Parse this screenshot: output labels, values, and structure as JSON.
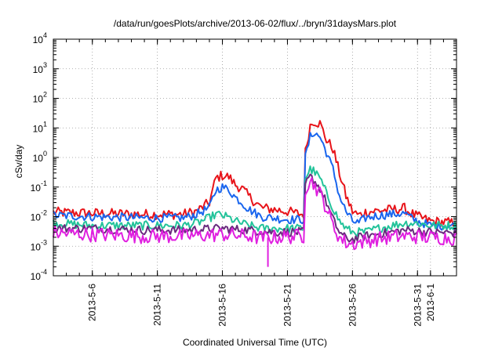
{
  "chart_data": {
    "type": "line",
    "title": "/data/run/goesPlots/archive/2013-06-02/flux/../bryn/31daysMars.plot",
    "xlabel": "Coordinated Universal Time (UTC)",
    "ylabel": "cSv/day",
    "x_range": [
      "2013-05-03",
      "2013-06-03"
    ],
    "y_scale": "log",
    "ylim": [
      0.0001,
      10000
    ],
    "grid": true,
    "x_ticks": [
      "2013-5-6",
      "2013-5-11",
      "2013-5-16",
      "2013-5-21",
      "2013-5-26",
      "2013-5-31",
      "2013-6-1"
    ],
    "x_tick_dates": [
      "2013-05-06",
      "2013-05-11",
      "2013-05-16",
      "2013-05-21",
      "2013-05-26",
      "2013-05-31",
      "2013-06-01"
    ],
    "y_ticks": [
      {
        "base": "10",
        "exp": "-4",
        "value": 0.0001
      },
      {
        "base": "10",
        "exp": "-3",
        "value": 0.001
      },
      {
        "base": "10",
        "exp": "-2",
        "value": 0.01
      },
      {
        "base": "10",
        "exp": "-1",
        "value": 0.1
      },
      {
        "base": "10",
        "exp": "0",
        "value": 1
      },
      {
        "base": "10",
        "exp": "1",
        "value": 10
      },
      {
        "base": "10",
        "exp": "2",
        "value": 100
      },
      {
        "base": "10",
        "exp": "3",
        "value": 1000
      },
      {
        "base": "10",
        "exp": "4",
        "value": 10000
      }
    ],
    "series": [
      {
        "color": "#e8141a",
        "width": 2,
        "noise": 0.35,
        "points": [
          [
            "2013-05-03",
            0.014
          ],
          [
            "2013-05-06",
            0.013
          ],
          [
            "2013-05-10",
            0.012
          ],
          [
            "2013-05-13",
            0.012
          ],
          [
            "2013-05-14",
            0.015
          ],
          [
            "2013-05-15",
            0.03
          ],
          [
            "2013-05-15T12:00",
            0.2
          ],
          [
            "2013-05-16",
            0.25
          ],
          [
            "2013-05-16T12:00",
            0.22
          ],
          [
            "2013-05-17",
            0.12
          ],
          [
            "2013-05-17T12:00",
            0.09
          ],
          [
            "2013-05-18",
            0.05
          ],
          [
            "2013-05-19",
            0.02
          ],
          [
            "2013-05-21",
            0.015
          ],
          [
            "2013-05-22",
            0.012
          ],
          [
            "2013-05-22T06:00",
            0.012
          ],
          [
            "2013-05-22T09:00",
            1.5
          ],
          [
            "2013-05-22T18:00",
            12
          ],
          [
            "2013-05-23",
            17
          ],
          [
            "2013-05-23T12:00",
            14
          ],
          [
            "2013-05-24",
            4
          ],
          [
            "2013-05-24T12:00",
            2
          ],
          [
            "2013-05-25",
            0.3
          ],
          [
            "2013-05-25T12:00",
            0.05
          ],
          [
            "2013-05-26",
            0.015
          ],
          [
            "2013-05-26T12:00",
            0.011
          ],
          [
            "2013-05-27",
            0.014
          ],
          [
            "2013-05-28",
            0.016
          ],
          [
            "2013-05-29",
            0.017
          ],
          [
            "2013-05-30",
            0.019
          ],
          [
            "2013-05-30T12:00",
            0.013
          ],
          [
            "2013-05-31",
            0.01
          ],
          [
            "2013-06-01",
            0.007
          ],
          [
            "2013-06-03",
            0.006
          ]
        ]
      },
      {
        "color": "#1a66ee",
        "width": 2,
        "noise": 0.3,
        "points": [
          [
            "2013-05-03",
            0.011
          ],
          [
            "2013-05-06",
            0.01
          ],
          [
            "2013-05-10",
            0.009
          ],
          [
            "2013-05-13",
            0.009
          ],
          [
            "2013-05-14",
            0.012
          ],
          [
            "2013-05-15",
            0.02
          ],
          [
            "2013-05-15T12:00",
            0.08
          ],
          [
            "2013-05-16",
            0.1
          ],
          [
            "2013-05-16T12:00",
            0.08
          ],
          [
            "2013-05-17",
            0.045
          ],
          [
            "2013-05-17T12:00",
            0.03
          ],
          [
            "2013-05-18",
            0.018
          ],
          [
            "2013-05-19",
            0.01
          ],
          [
            "2013-05-21",
            0.008
          ],
          [
            "2013-05-22",
            0.008
          ],
          [
            "2013-05-22T06:00",
            0.008
          ],
          [
            "2013-05-22T09:00",
            1.0
          ],
          [
            "2013-05-22T18:00",
            5
          ],
          [
            "2013-05-23",
            7
          ],
          [
            "2013-05-23T12:00",
            5
          ],
          [
            "2013-05-24",
            1.5
          ],
          [
            "2013-05-24T12:00",
            0.4
          ],
          [
            "2013-05-25",
            0.05
          ],
          [
            "2013-05-25T12:00",
            0.015
          ],
          [
            "2013-05-26",
            0.007
          ],
          [
            "2013-05-26T12:00",
            0.006
          ],
          [
            "2013-05-27",
            0.009
          ],
          [
            "2013-05-28",
            0.011
          ],
          [
            "2013-05-29",
            0.012
          ],
          [
            "2013-05-30",
            0.013
          ],
          [
            "2013-05-30T12:00",
            0.009
          ],
          [
            "2013-05-31",
            0.007
          ],
          [
            "2013-06-01",
            0.005
          ],
          [
            "2013-06-03",
            0.005
          ]
        ]
      },
      {
        "color": "#22c39a",
        "width": 2,
        "noise": 0.3,
        "points": [
          [
            "2013-05-03",
            0.006
          ],
          [
            "2013-05-06",
            0.005
          ],
          [
            "2013-05-10",
            0.005
          ],
          [
            "2013-05-13",
            0.005
          ],
          [
            "2013-05-14",
            0.006
          ],
          [
            "2013-05-15",
            0.009
          ],
          [
            "2013-05-15T12:00",
            0.012
          ],
          [
            "2013-05-16",
            0.011
          ],
          [
            "2013-05-16T12:00",
            0.009
          ],
          [
            "2013-05-17",
            0.007
          ],
          [
            "2013-05-18",
            0.005
          ],
          [
            "2013-05-19",
            0.004
          ],
          [
            "2013-05-21",
            0.004
          ],
          [
            "2013-05-22",
            0.004
          ],
          [
            "2013-05-22T06:00",
            0.004
          ],
          [
            "2013-05-22T09:00",
            0.2
          ],
          [
            "2013-05-22T18:00",
            0.4
          ],
          [
            "2013-05-23",
            0.35
          ],
          [
            "2013-05-23T12:00",
            0.2
          ],
          [
            "2013-05-24",
            0.06
          ],
          [
            "2013-05-24T12:00",
            0.02
          ],
          [
            "2013-05-25",
            0.007
          ],
          [
            "2013-05-25T12:00",
            0.004
          ],
          [
            "2013-05-26",
            0.003
          ],
          [
            "2013-05-27",
            0.003
          ],
          [
            "2013-05-28",
            0.004
          ],
          [
            "2013-05-29",
            0.005
          ],
          [
            "2013-05-30",
            0.006
          ],
          [
            "2013-05-31",
            0.006
          ],
          [
            "2013-06-01",
            0.005
          ],
          [
            "2013-06-03",
            0.005
          ]
        ]
      },
      {
        "color": "#6a2a7e",
        "width": 2,
        "noise": 0.3,
        "points": [
          [
            "2013-05-03",
            0.004
          ],
          [
            "2013-05-06",
            0.004
          ],
          [
            "2013-05-10",
            0.0035
          ],
          [
            "2013-05-13",
            0.0035
          ],
          [
            "2013-05-16",
            0.004
          ],
          [
            "2013-05-18",
            0.0035
          ],
          [
            "2013-05-20",
            0.003
          ],
          [
            "2013-05-22",
            0.003
          ],
          [
            "2013-05-22T06:00",
            0.003
          ],
          [
            "2013-05-22T09:00",
            0.12
          ],
          [
            "2013-05-22T18:00",
            0.22
          ],
          [
            "2013-05-23",
            0.18
          ],
          [
            "2013-05-23T12:00",
            0.09
          ],
          [
            "2013-05-24",
            0.03
          ],
          [
            "2013-05-24T12:00",
            0.008
          ],
          [
            "2013-05-25",
            0.003
          ],
          [
            "2013-05-25T12:00",
            0.0018
          ],
          [
            "2013-05-26",
            0.0017
          ],
          [
            "2013-05-27",
            0.0022
          ],
          [
            "2013-05-28",
            0.0026
          ],
          [
            "2013-05-29",
            0.003
          ],
          [
            "2013-05-30",
            0.0035
          ],
          [
            "2013-05-31",
            0.0033
          ],
          [
            "2013-06-01",
            0.003
          ],
          [
            "2013-06-03",
            0.0028
          ]
        ]
      },
      {
        "color": "#e020e0",
        "width": 2,
        "noise": 0.5,
        "points": [
          [
            "2013-05-03",
            0.0028
          ],
          [
            "2013-05-06",
            0.0025
          ],
          [
            "2013-05-10",
            0.0022
          ],
          [
            "2013-05-13",
            0.0022
          ],
          [
            "2013-05-16",
            0.0025
          ],
          [
            "2013-05-18",
            0.0022
          ],
          [
            "2013-05-19",
            0.0019
          ],
          [
            "2013-05-20",
            0.002
          ],
          [
            "2013-05-22",
            0.0022
          ],
          [
            "2013-05-22T06:00",
            0.0022
          ],
          [
            "2013-05-22T09:00",
            0.09
          ],
          [
            "2013-05-22T18:00",
            0.17
          ],
          [
            "2013-05-23",
            0.13
          ],
          [
            "2013-05-23T12:00",
            0.06
          ],
          [
            "2013-05-24",
            0.02
          ],
          [
            "2013-05-24T12:00",
            0.005
          ],
          [
            "2013-05-25",
            0.002
          ],
          [
            "2013-05-25T12:00",
            0.0013
          ],
          [
            "2013-05-26",
            0.0012
          ],
          [
            "2013-05-27",
            0.0015
          ],
          [
            "2013-05-28",
            0.0018
          ],
          [
            "2013-05-29",
            0.002
          ],
          [
            "2013-05-30",
            0.0022
          ],
          [
            "2013-05-31",
            0.0021
          ],
          [
            "2013-06-01",
            0.002
          ],
          [
            "2013-06-03",
            0.0019
          ]
        ]
      }
    ],
    "annotations": [
      {
        "series": 4,
        "date": "2013-05-19T12:00",
        "value": 0.0002,
        "kind": "dip"
      }
    ]
  }
}
